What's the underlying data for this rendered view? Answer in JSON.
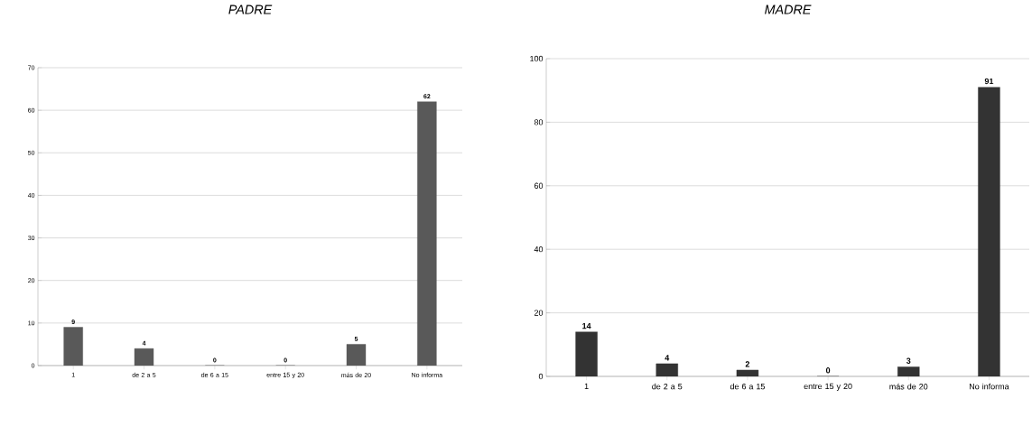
{
  "chart_data": [
    {
      "type": "bar",
      "title": "PADRE",
      "categories": [
        "1",
        "de 2 a 5",
        "de 6 a 15",
        "entre 15 y 20",
        "más de 20",
        "No informa"
      ],
      "values": [
        9,
        4,
        0,
        0,
        5,
        62
      ],
      "color": "#595959",
      "ylim": [
        0,
        70
      ],
      "yticks": [
        0,
        10,
        20,
        30,
        40,
        50,
        60,
        70
      ],
      "grid": "y",
      "data_labels": true
    },
    {
      "type": "bar",
      "title": "MADRE",
      "categories": [
        "1",
        "de 2 a 5",
        "de 6 a 15",
        "entre 15 y 20",
        "más de 20",
        "No informa"
      ],
      "values": [
        14,
        4,
        2,
        0,
        3,
        91
      ],
      "color": "#333333",
      "ylim": [
        0,
        100
      ],
      "yticks": [
        0,
        20,
        40,
        60,
        80,
        100
      ],
      "grid": "y",
      "data_labels": true
    }
  ]
}
